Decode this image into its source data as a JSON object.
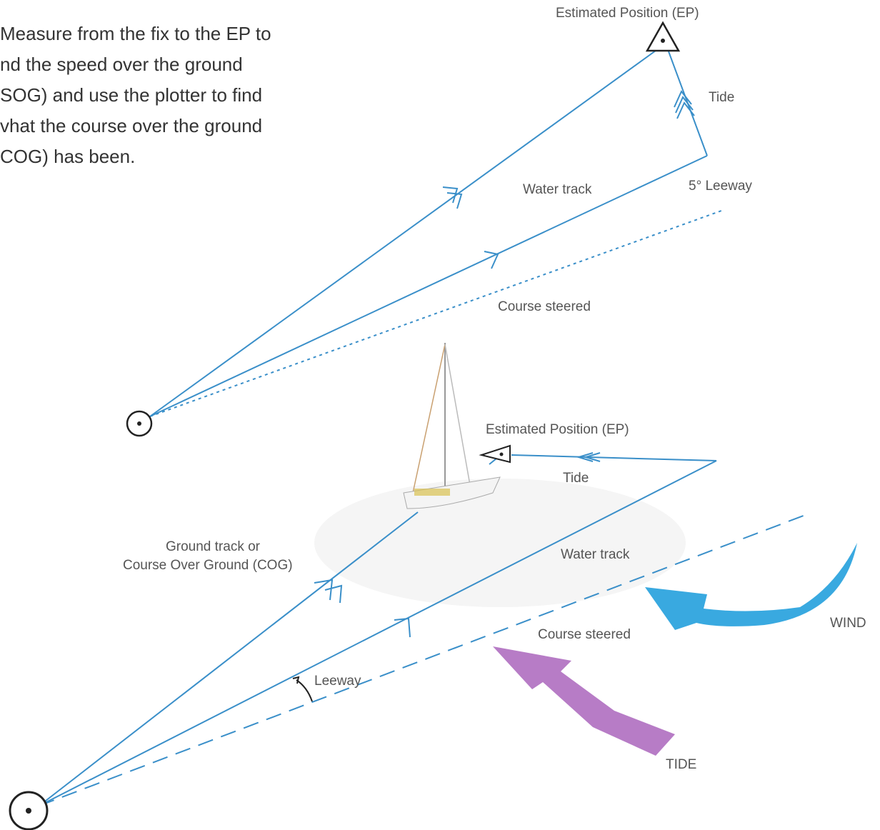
{
  "paragraph": {
    "lines": [
      "Measure from the fix to the EP to",
      "nd the speed over the ground",
      "SOG) and use the plotter to find",
      "vhat the course over the ground",
      "COG) has been."
    ]
  },
  "upper_diagram": {
    "ep_label": "Estimated Position (EP)",
    "tide_label": "Tide",
    "water_track_label": "Water track",
    "leeway_label": "5° Leeway",
    "course_steered_label": "Course steered"
  },
  "lower_diagram": {
    "ep_label": "Estimated Position (EP)",
    "tide_label": "Tide",
    "ground_track_label": [
      "Ground track or",
      "Course Over Ground (COG)"
    ],
    "water_track_label": "Water track",
    "course_steered_label": "Course steered",
    "leeway_label": "Leeway",
    "wind_label": "WIND",
    "tide_arrow_label": "TIDE"
  }
}
